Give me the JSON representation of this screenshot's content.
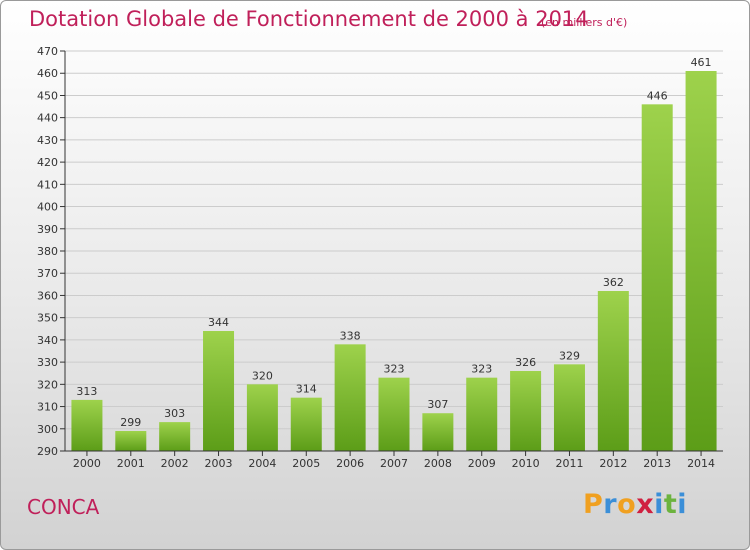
{
  "title": "Dotation Globale de Fonctionnement de 2000 à 2014",
  "subtitle": "(en milliers d'€)",
  "place": "CONCA",
  "logo": {
    "text": "Proxiti",
    "letters": [
      "P",
      "r",
      "o",
      "x",
      "i",
      "t",
      "i"
    ],
    "colors": [
      "#f0a020",
      "#3b8fd8",
      "#f0a020",
      "#d02040",
      "#3b8fd8",
      "#6cb33e",
      "#3b8fd8"
    ]
  },
  "colors": {
    "title": "#c0205a",
    "bar_light": "#9ed24c",
    "bar_dark": "#5c9d18",
    "grid": "#cccccc",
    "axis": "#333333"
  },
  "chart_data": {
    "type": "bar",
    "categories": [
      "2000",
      "2001",
      "2002",
      "2003",
      "2004",
      "2005",
      "2006",
      "2007",
      "2008",
      "2009",
      "2010",
      "2011",
      "2012",
      "2013",
      "2014"
    ],
    "values": [
      313,
      299,
      303,
      344,
      320,
      314,
      338,
      323,
      307,
      323,
      326,
      329,
      362,
      446,
      461
    ],
    "ylim": [
      290,
      470
    ],
    "ytick_step": 10,
    "grid": true,
    "xlabel": "",
    "ylabel": ""
  }
}
